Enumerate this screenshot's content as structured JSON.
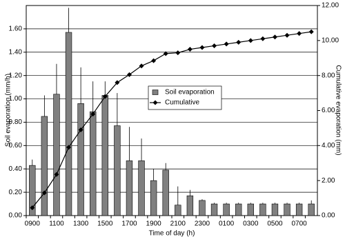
{
  "chart_data": {
    "type": "bar",
    "x_label": "Time of day (h)",
    "y_label": "Soil evaporation (mm/h)",
    "y2_label": "Cumulative evaporation (mm)",
    "categories": [
      "0900",
      null,
      "1100",
      null,
      "1300",
      null,
      "1500",
      null,
      "1700",
      null,
      "1900",
      null,
      "2100",
      null,
      "2300",
      null,
      "0100",
      null,
      "0300",
      null,
      "0500",
      null,
      "0700",
      null
    ],
    "series": [
      {
        "name": "Soil evaporation",
        "type": "bar",
        "color": "#808080",
        "values": [
          0.43,
          0.85,
          1.04,
          1.57,
          0.96,
          0.89,
          1.03,
          0.77,
          0.47,
          0.47,
          0.3,
          0.39,
          0.09,
          0.17,
          0.13,
          0.1,
          0.1,
          0.1,
          0.1,
          0.1,
          0.1,
          0.1,
          0.1,
          0.1
        ],
        "errors": [
          0.05,
          0.18,
          0.26,
          0.21,
          0.31,
          0.26,
          0.12,
          0.28,
          0.29,
          0.19,
          0.1,
          0.06,
          0.16,
          0.05,
          0.01,
          0.01,
          0.01,
          0.01,
          0.01,
          0.01,
          0.01,
          0.01,
          0.01,
          0.03
        ]
      },
      {
        "name": "Cumulative",
        "type": "line",
        "axis": "y2",
        "color": "#000000",
        "values": [
          0.45,
          1.3,
          2.35,
          3.9,
          4.9,
          5.8,
          6.8,
          7.6,
          8.05,
          8.55,
          8.85,
          9.25,
          9.3,
          9.5,
          9.6,
          9.7,
          9.8,
          9.9,
          10.0,
          10.1,
          10.2,
          10.3,
          10.4,
          10.5
        ]
      }
    ],
    "ylim": [
      0,
      1.8
    ],
    "yticks": [
      {
        "value": 0,
        "label": "0.00"
      },
      {
        "value": 0.2,
        "label": "0.20"
      },
      {
        "value": 0.4,
        "label": "0.40"
      },
      {
        "value": 0.6,
        "label": "0.60"
      },
      {
        "value": 0.8,
        "label": "0.80"
      },
      {
        "value": 1.0,
        "label": "1.00"
      },
      {
        "value": 1.2,
        "label": "1.20"
      },
      {
        "value": 1.4,
        "label": "1.40"
      },
      {
        "value": 1.6,
        "label": "1.60"
      }
    ],
    "y2lim": [
      0,
      12
    ],
    "y2ticks": [
      {
        "value": 0,
        "label": "0.00"
      },
      {
        "value": 2,
        "label": "2.00"
      },
      {
        "value": 4,
        "label": "4.00"
      },
      {
        "value": 6,
        "label": "6.00"
      },
      {
        "value": 8,
        "label": "8.00"
      },
      {
        "value": 10,
        "label": "10.00"
      },
      {
        "value": 12,
        "label": "12.00"
      }
    ],
    "grid": true
  }
}
